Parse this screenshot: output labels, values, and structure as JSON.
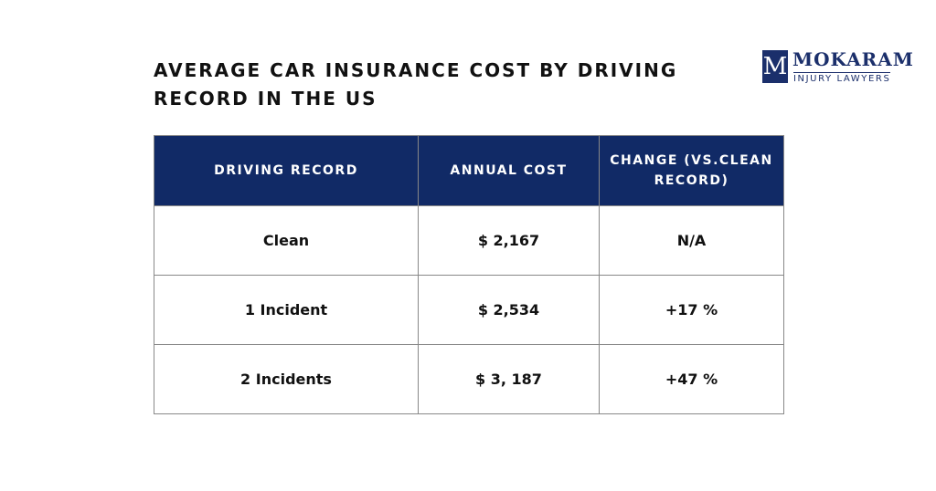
{
  "header": {
    "title": "AVERAGE CAR INSURANCE COST BY DRIVING RECORD IN THE US"
  },
  "logo": {
    "mark": "M",
    "name": "MOKARAM",
    "tagline": "INJURY LAWYERS"
  },
  "table": {
    "columns": [
      "DRIVING RECORD",
      "ANNUAL COST",
      "CHANGE (VS.CLEAN RECORD)"
    ],
    "rows": [
      [
        "Clean",
        "$ 2,167",
        "N/A"
      ],
      [
        "1 Incident",
        "$ 2,534",
        "+17 %"
      ],
      [
        "2 Incidents",
        "$ 3, 187",
        "+47 %"
      ]
    ]
  }
}
